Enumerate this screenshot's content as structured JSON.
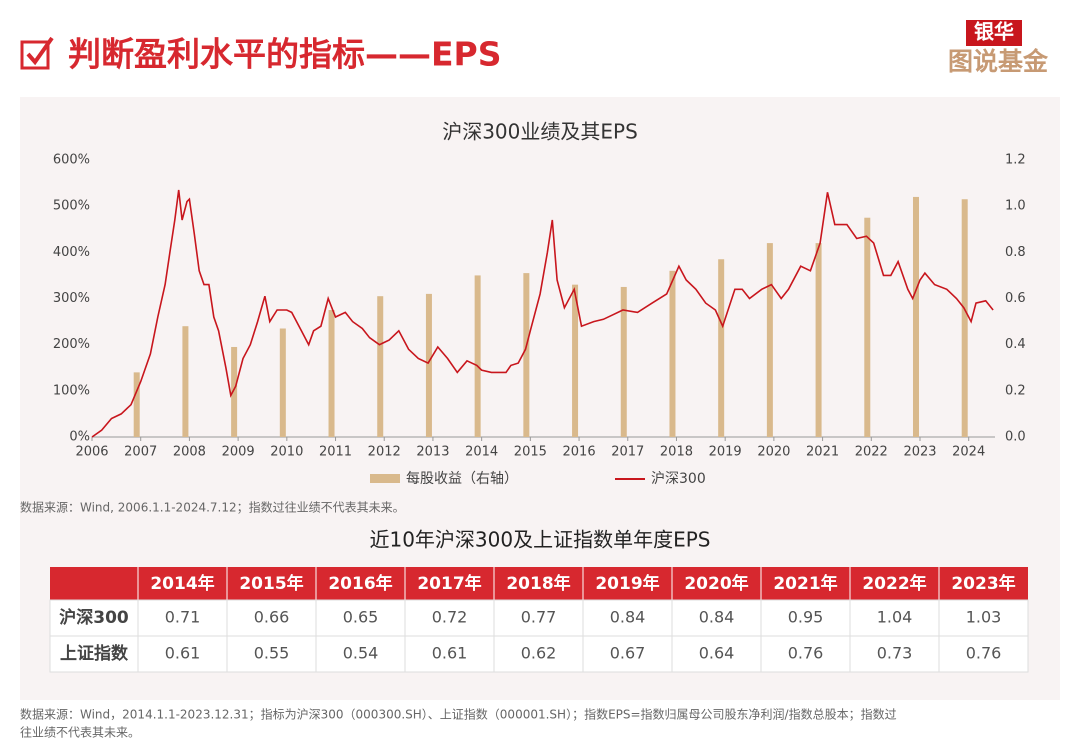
{
  "header": {
    "title": "判断盈利水平的指标——EPS",
    "logo_top": "银华",
    "logo_bottom": "图说基金"
  },
  "chart_data": {
    "type": "combo",
    "title": "沪深300业绩及其EPS",
    "xlim": [
      2006,
      2024.54
    ],
    "xticks": [
      2006,
      2007,
      2008,
      2009,
      2010,
      2011,
      2012,
      2013,
      2014,
      2015,
      2016,
      2017,
      2018,
      2019,
      2020,
      2021,
      2022,
      2023,
      2024
    ],
    "ylim": [
      0,
      600
    ],
    "yticks": [
      {
        "value": 0,
        "label": "0%"
      },
      {
        "value": 100,
        "label": "100%"
      },
      {
        "value": 200,
        "label": "200%"
      },
      {
        "value": 300,
        "label": "300%"
      },
      {
        "value": 400,
        "label": "400%"
      },
      {
        "value": 500,
        "label": "500%"
      },
      {
        "value": 600,
        "label": "600%"
      }
    ],
    "y2lim": [
      0,
      1.2
    ],
    "y2ticks": [
      {
        "value": 0,
        "label": "0.0"
      },
      0.2,
      0.4,
      0.6,
      0.8,
      {
        "value": 1,
        "label": "1.0"
      },
      1.2
    ],
    "series": [
      {
        "name": "每股收益（右轴）",
        "type": "bar",
        "axis": "y2",
        "color": "#d9b98c",
        "x": [
          2007,
          2008,
          2009,
          2010,
          2011,
          2012,
          2013,
          2014,
          2015,
          2016,
          2017,
          2018,
          2019,
          2020,
          2021,
          2022,
          2023,
          2024
        ],
        "values": [
          0.28,
          0.48,
          0.39,
          0.47,
          0.55,
          0.61,
          0.62,
          0.7,
          0.71,
          0.66,
          0.65,
          0.72,
          0.77,
          0.84,
          0.84,
          0.95,
          1.04,
          1.03
        ]
      },
      {
        "name": "沪深300",
        "type": "line",
        "color": "#c8161d",
        "x": [
          2006,
          2006.2,
          2006.4,
          2006.6,
          2006.8,
          2007,
          2007.2,
          2007.35,
          2007.5,
          2007.6,
          2007.7,
          2007.78,
          2007.85,
          2007.95,
          2008,
          2008.1,
          2008.2,
          2008.3,
          2008.4,
          2008.5,
          2008.6,
          2008.75,
          2008.85,
          2008.95,
          2009.1,
          2009.25,
          2009.4,
          2009.55,
          2009.65,
          2009.8,
          2010,
          2010.1,
          2010.3,
          2010.45,
          2010.55,
          2010.7,
          2010.85,
          2011,
          2011.2,
          2011.35,
          2011.55,
          2011.7,
          2011.9,
          2012.1,
          2012.3,
          2012.5,
          2012.7,
          2012.9,
          2013.1,
          2013.3,
          2013.5,
          2013.7,
          2013.9,
          2014,
          2014.2,
          2014.4,
          2014.5,
          2014.6,
          2014.75,
          2014.9,
          2015,
          2015.2,
          2015.35,
          2015.45,
          2015.55,
          2015.7,
          2015.9,
          2016.05,
          2016.3,
          2016.5,
          2016.7,
          2016.9,
          2017.2,
          2017.5,
          2017.8,
          2018.05,
          2018.2,
          2018.4,
          2018.6,
          2018.8,
          2018.95,
          2019.2,
          2019.35,
          2019.5,
          2019.75,
          2019.95,
          2020.15,
          2020.3,
          2020.55,
          2020.75,
          2020.95,
          2021.1,
          2021.25,
          2021.5,
          2021.7,
          2021.9,
          2022.05,
          2022.25,
          2022.4,
          2022.55,
          2022.75,
          2022.85,
          2023,
          2023.1,
          2023.3,
          2023.55,
          2023.75,
          2023.9,
          2024.05,
          2024.15,
          2024.35,
          2024.5
        ],
        "values": [
          0,
          15,
          40,
          50,
          70,
          120,
          180,
          260,
          330,
          400,
          470,
          535,
          470,
          510,
          515,
          440,
          360,
          330,
          330,
          260,
          230,
          150,
          90,
          110,
          170,
          200,
          250,
          305,
          250,
          275,
          275,
          270,
          230,
          200,
          230,
          240,
          300,
          260,
          270,
          250,
          235,
          215,
          200,
          210,
          230,
          190,
          170,
          160,
          195,
          170,
          140,
          165,
          155,
          145,
          140,
          140,
          140,
          155,
          160,
          190,
          230,
          310,
          400,
          470,
          340,
          280,
          320,
          240,
          250,
          255,
          265,
          275,
          270,
          290,
          310,
          370,
          340,
          320,
          290,
          275,
          240,
          320,
          320,
          300,
          320,
          330,
          300,
          320,
          370,
          360,
          420,
          530,
          460,
          460,
          430,
          435,
          420,
          350,
          350,
          380,
          320,
          300,
          340,
          355,
          330,
          320,
          300,
          280,
          250,
          290,
          295,
          275
        ]
      }
    ],
    "source": "数据来源：Wind, 2006.1.1-2024.7.12；指数过往业绩不代表其未来。"
  },
  "table": {
    "title": "近10年沪深300及上证指数单年度EPS",
    "columns": [
      "2014年",
      "2015年",
      "2016年",
      "2017年",
      "2018年",
      "2019年",
      "2020年",
      "2021年",
      "2022年",
      "2023年"
    ],
    "rows": [
      {
        "label": "沪深300",
        "values": [
          0.71,
          0.66,
          0.65,
          0.72,
          0.77,
          0.84,
          0.84,
          0.95,
          1.04,
          1.03
        ]
      },
      {
        "label": "上证指数",
        "values": [
          0.61,
          0.55,
          0.54,
          0.61,
          0.62,
          0.67,
          0.64,
          0.76,
          0.73,
          0.76
        ]
      }
    ],
    "source_lines": [
      "数据来源：Wind，2014.1.1-2023.12.31；指标为沪深300（000300.SH）、上证指数（000001.SH）；指数EPS=指数归属母公司股东净利润/指数总股本；指数过",
      "往业绩不代表其未来。"
    ]
  }
}
